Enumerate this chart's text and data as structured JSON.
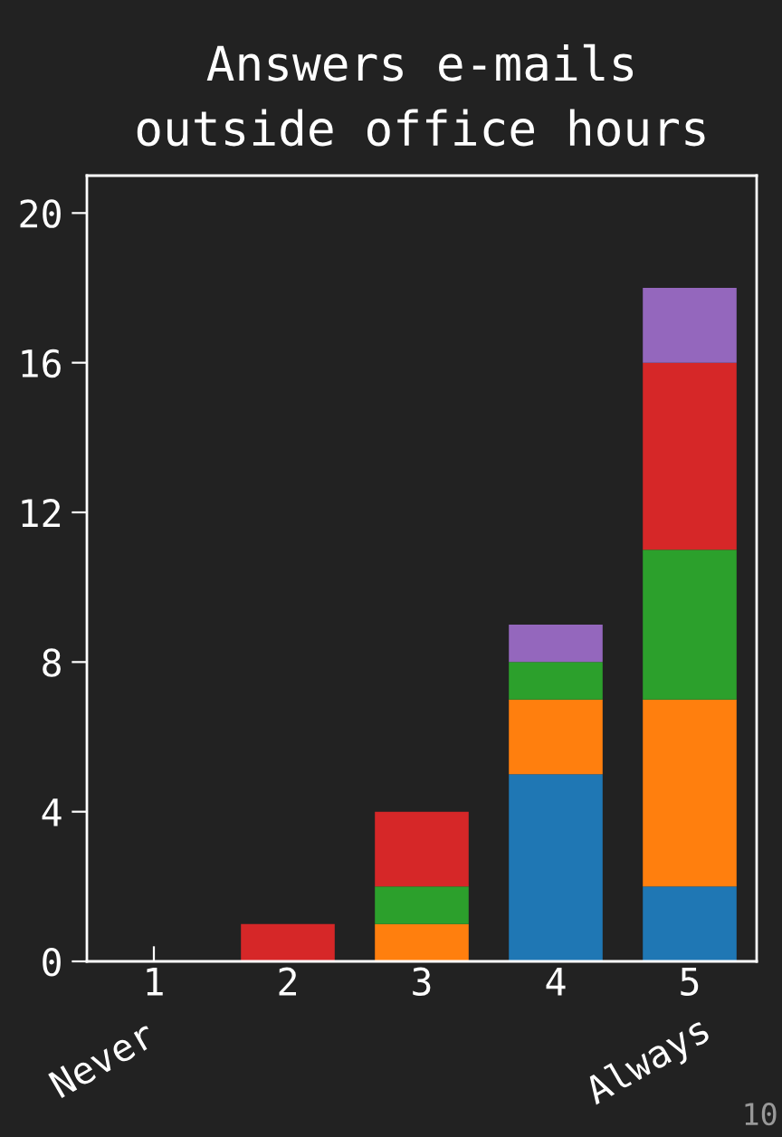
{
  "chart_data": {
    "type": "bar",
    "title": "Answers e-mails\noutside office hours",
    "categories": [
      "1",
      "2",
      "3",
      "4",
      "5"
    ],
    "stacked": true,
    "series": [
      {
        "color": "#1f77b4",
        "values": [
          0,
          0,
          0,
          5,
          2
        ]
      },
      {
        "color": "#ff7f0e",
        "values": [
          0,
          0,
          1,
          2,
          5
        ]
      },
      {
        "color": "#2ca02c",
        "values": [
          0,
          0,
          1,
          1,
          4
        ]
      },
      {
        "color": "#d62728",
        "values": [
          0,
          1,
          2,
          0,
          5
        ]
      },
      {
        "color": "#9467bd",
        "values": [
          0,
          0,
          0,
          1,
          2
        ]
      }
    ],
    "ylim": [
      0,
      21
    ],
    "yticks": [
      0,
      4,
      8,
      12,
      16,
      20
    ],
    "grid": false,
    "legend": false,
    "annotations": [
      "Never",
      "Always",
      "10"
    ]
  }
}
